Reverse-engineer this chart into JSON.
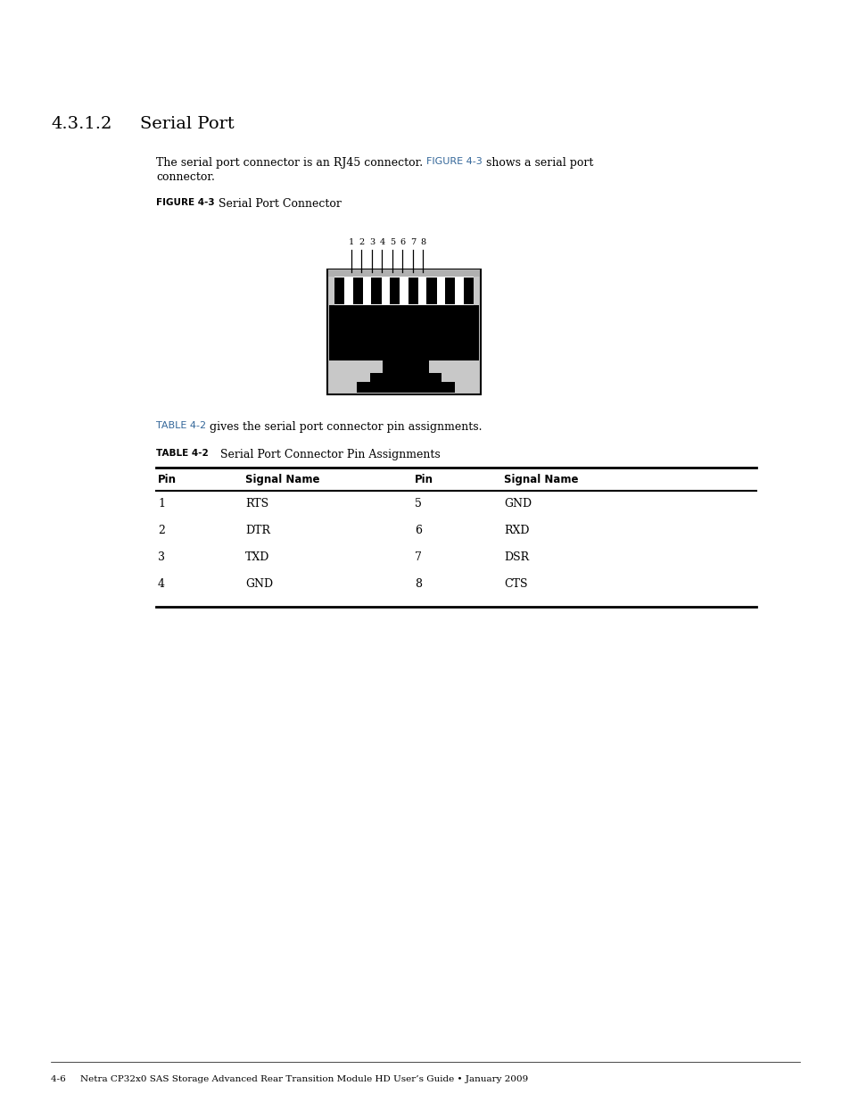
{
  "section_number": "4.3.1.2",
  "section_title": "Serial Port",
  "body_text_pre": "The serial port connector is an RJ45 connector. ",
  "figure_ref": "FIGURE 4-3",
  "body_text_post": " shows a serial port",
  "body_text_line2": "connector.",
  "figure_label_bold": "FIGURE 4-3",
  "figure_label_text": "Serial Port Connector",
  "table_ref": "TABLE 4-2",
  "table_ref_suffix": " gives the serial port connector pin assignments.",
  "table_label_bold": "TABLE 4-2",
  "table_label_text": "Serial Port Connector Pin Assignments",
  "table_headers": [
    "Pin",
    "Signal Name",
    "Pin",
    "Signal Name"
  ],
  "table_rows": [
    [
      "1",
      "RTS",
      "5",
      "GND"
    ],
    [
      "2",
      "DTR",
      "6",
      "RXD"
    ],
    [
      "3",
      "TXD",
      "7",
      "DSR"
    ],
    [
      "4",
      "GND",
      "8",
      "CTS"
    ]
  ],
  "link_color": "#336699",
  "text_color": "#000000",
  "bg_color": "#ffffff",
  "footer_text": "4-6     Netra CP32x0 SAS Storage Advanced Rear Transition Module HD User’s Guide • January 2009"
}
